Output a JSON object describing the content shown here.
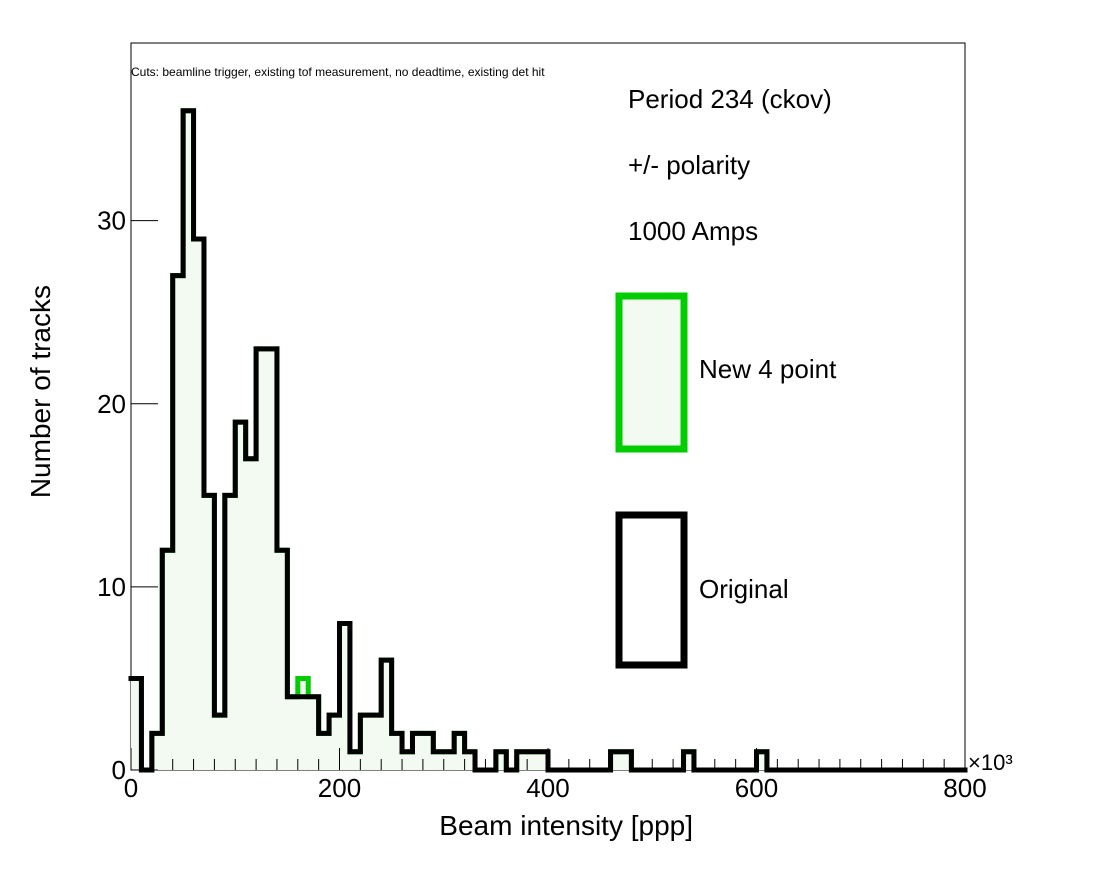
{
  "chart_data": {
    "type": "histogram",
    "title": "",
    "cuts_label": "Cuts: beamline trigger, existing tof measurement, no deadtime, existing det hit",
    "xlabel": "Beam intensity [ppp]",
    "ylabel": "Number of tracks",
    "x_multiplier_label": "×10³",
    "xlim": [
      0,
      800
    ],
    "ylim": [
      0,
      39.7
    ],
    "x_ticks": [
      0,
      200,
      400,
      600,
      800
    ],
    "y_ticks": [
      0,
      10,
      20,
      30
    ],
    "bin_width": 10,
    "bin_starts": [
      0,
      10,
      20,
      30,
      40,
      50,
      60,
      70,
      80,
      90,
      100,
      110,
      120,
      130,
      140,
      150,
      160,
      170,
      180,
      190,
      200,
      210,
      220,
      230,
      240,
      250,
      260,
      270,
      280,
      290,
      300,
      310,
      320,
      330,
      340,
      350,
      360,
      370,
      380,
      390,
      400,
      410,
      420,
      430,
      440,
      450,
      460,
      470,
      480,
      490,
      500,
      510,
      520,
      530,
      540,
      550,
      560,
      570,
      580,
      590,
      600,
      610,
      620,
      630,
      640,
      650,
      660,
      670,
      680,
      690,
      700,
      710,
      720,
      730,
      740,
      750,
      760,
      770,
      780,
      790
    ],
    "series": [
      {
        "name": "New 4 point",
        "color": "#00cc00",
        "fill": "#f2faf2",
        "values": [
          5,
          0,
          2,
          12,
          27,
          36,
          29,
          15,
          3,
          15,
          19,
          17,
          23,
          23,
          12,
          4,
          5,
          4,
          2,
          3,
          8,
          1,
          3,
          3,
          6,
          2,
          1,
          2,
          2,
          1,
          1,
          2,
          1,
          0,
          0,
          1,
          0,
          1,
          1,
          1,
          0,
          0,
          0,
          0,
          0,
          0,
          1,
          1,
          0,
          0,
          0,
          0,
          0,
          1,
          0,
          0,
          0,
          0,
          0,
          0,
          1,
          0,
          0,
          0,
          0,
          0,
          0,
          0,
          0,
          0,
          0,
          0,
          0,
          0,
          0,
          0,
          0,
          0,
          0,
          0
        ]
      },
      {
        "name": "Original",
        "color": "#000000",
        "fill": "none",
        "values": [
          5,
          0,
          2,
          12,
          27,
          36,
          29,
          15,
          3,
          15,
          19,
          17,
          23,
          23,
          12,
          4,
          4,
          4,
          2,
          3,
          8,
          1,
          3,
          3,
          6,
          2,
          1,
          2,
          2,
          1,
          1,
          2,
          1,
          0,
          0,
          1,
          0,
          1,
          1,
          1,
          0,
          0,
          0,
          0,
          0,
          0,
          1,
          1,
          0,
          0,
          0,
          0,
          0,
          1,
          0,
          0,
          0,
          0,
          0,
          0,
          1,
          0,
          0,
          0,
          0,
          0,
          0,
          0,
          0,
          0,
          0,
          0,
          0,
          0,
          0,
          0,
          0,
          0,
          0,
          0
        ]
      }
    ],
    "annotations": [
      "Period 234 (ckov)",
      "+/- polarity",
      "1000 Amps"
    ],
    "grid": false,
    "legend_position": "right"
  }
}
